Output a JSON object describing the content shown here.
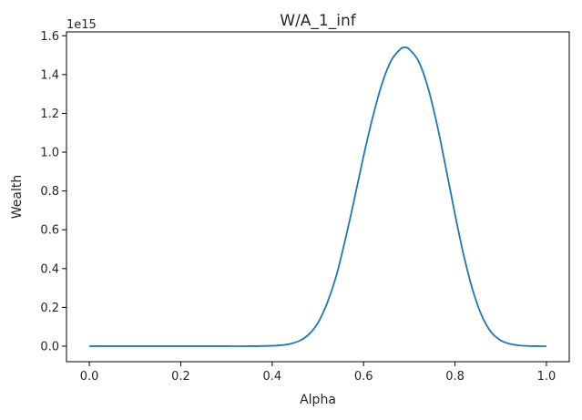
{
  "chart_data": {
    "type": "line",
    "title": "W/A_1_inf",
    "xlabel": "Alpha",
    "ylabel": "Wealth",
    "y_offset_label": "1e15",
    "y_scale_factor": 1000000000000000.0,
    "xlim": [
      -0.05,
      1.05
    ],
    "ylim": [
      -0.08,
      1.62
    ],
    "x_ticks": [
      0.0,
      0.2,
      0.4,
      0.6,
      0.8,
      1.0
    ],
    "x_tick_labels": [
      "0.0",
      "0.2",
      "0.4",
      "0.6",
      "0.8",
      "1.0"
    ],
    "y_ticks": [
      0.0,
      0.2,
      0.4,
      0.6,
      0.8,
      1.0,
      1.2,
      1.4,
      1.6
    ],
    "y_tick_labels": [
      "0.0",
      "0.2",
      "0.4",
      "0.6",
      "0.8",
      "1.0",
      "1.2",
      "1.4",
      "1.6"
    ],
    "grid": false,
    "line_color": "#1f77b4",
    "series": [
      {
        "x": [
          0.0,
          0.05,
          0.1,
          0.15,
          0.2,
          0.25,
          0.3,
          0.35,
          0.4,
          0.42,
          0.44,
          0.46,
          0.48,
          0.5,
          0.52,
          0.54,
          0.56,
          0.58,
          0.6,
          0.62,
          0.64,
          0.66,
          0.68,
          0.69,
          0.7,
          0.72,
          0.74,
          0.76,
          0.78,
          0.8,
          0.82,
          0.84,
          0.86,
          0.88,
          0.9,
          0.92,
          0.94,
          0.96,
          0.98,
          1.0
        ],
        "y": [
          0.0,
          0.0,
          0.0,
          0.0,
          0.0,
          0.0,
          0.0,
          0.0,
          0.002,
          0.005,
          0.012,
          0.028,
          0.06,
          0.12,
          0.22,
          0.36,
          0.55,
          0.76,
          0.98,
          1.18,
          1.35,
          1.47,
          1.53,
          1.54,
          1.53,
          1.47,
          1.34,
          1.15,
          0.92,
          0.68,
          0.46,
          0.28,
          0.15,
          0.07,
          0.03,
          0.012,
          0.004,
          0.001,
          0.0,
          0.0
        ]
      }
    ]
  }
}
